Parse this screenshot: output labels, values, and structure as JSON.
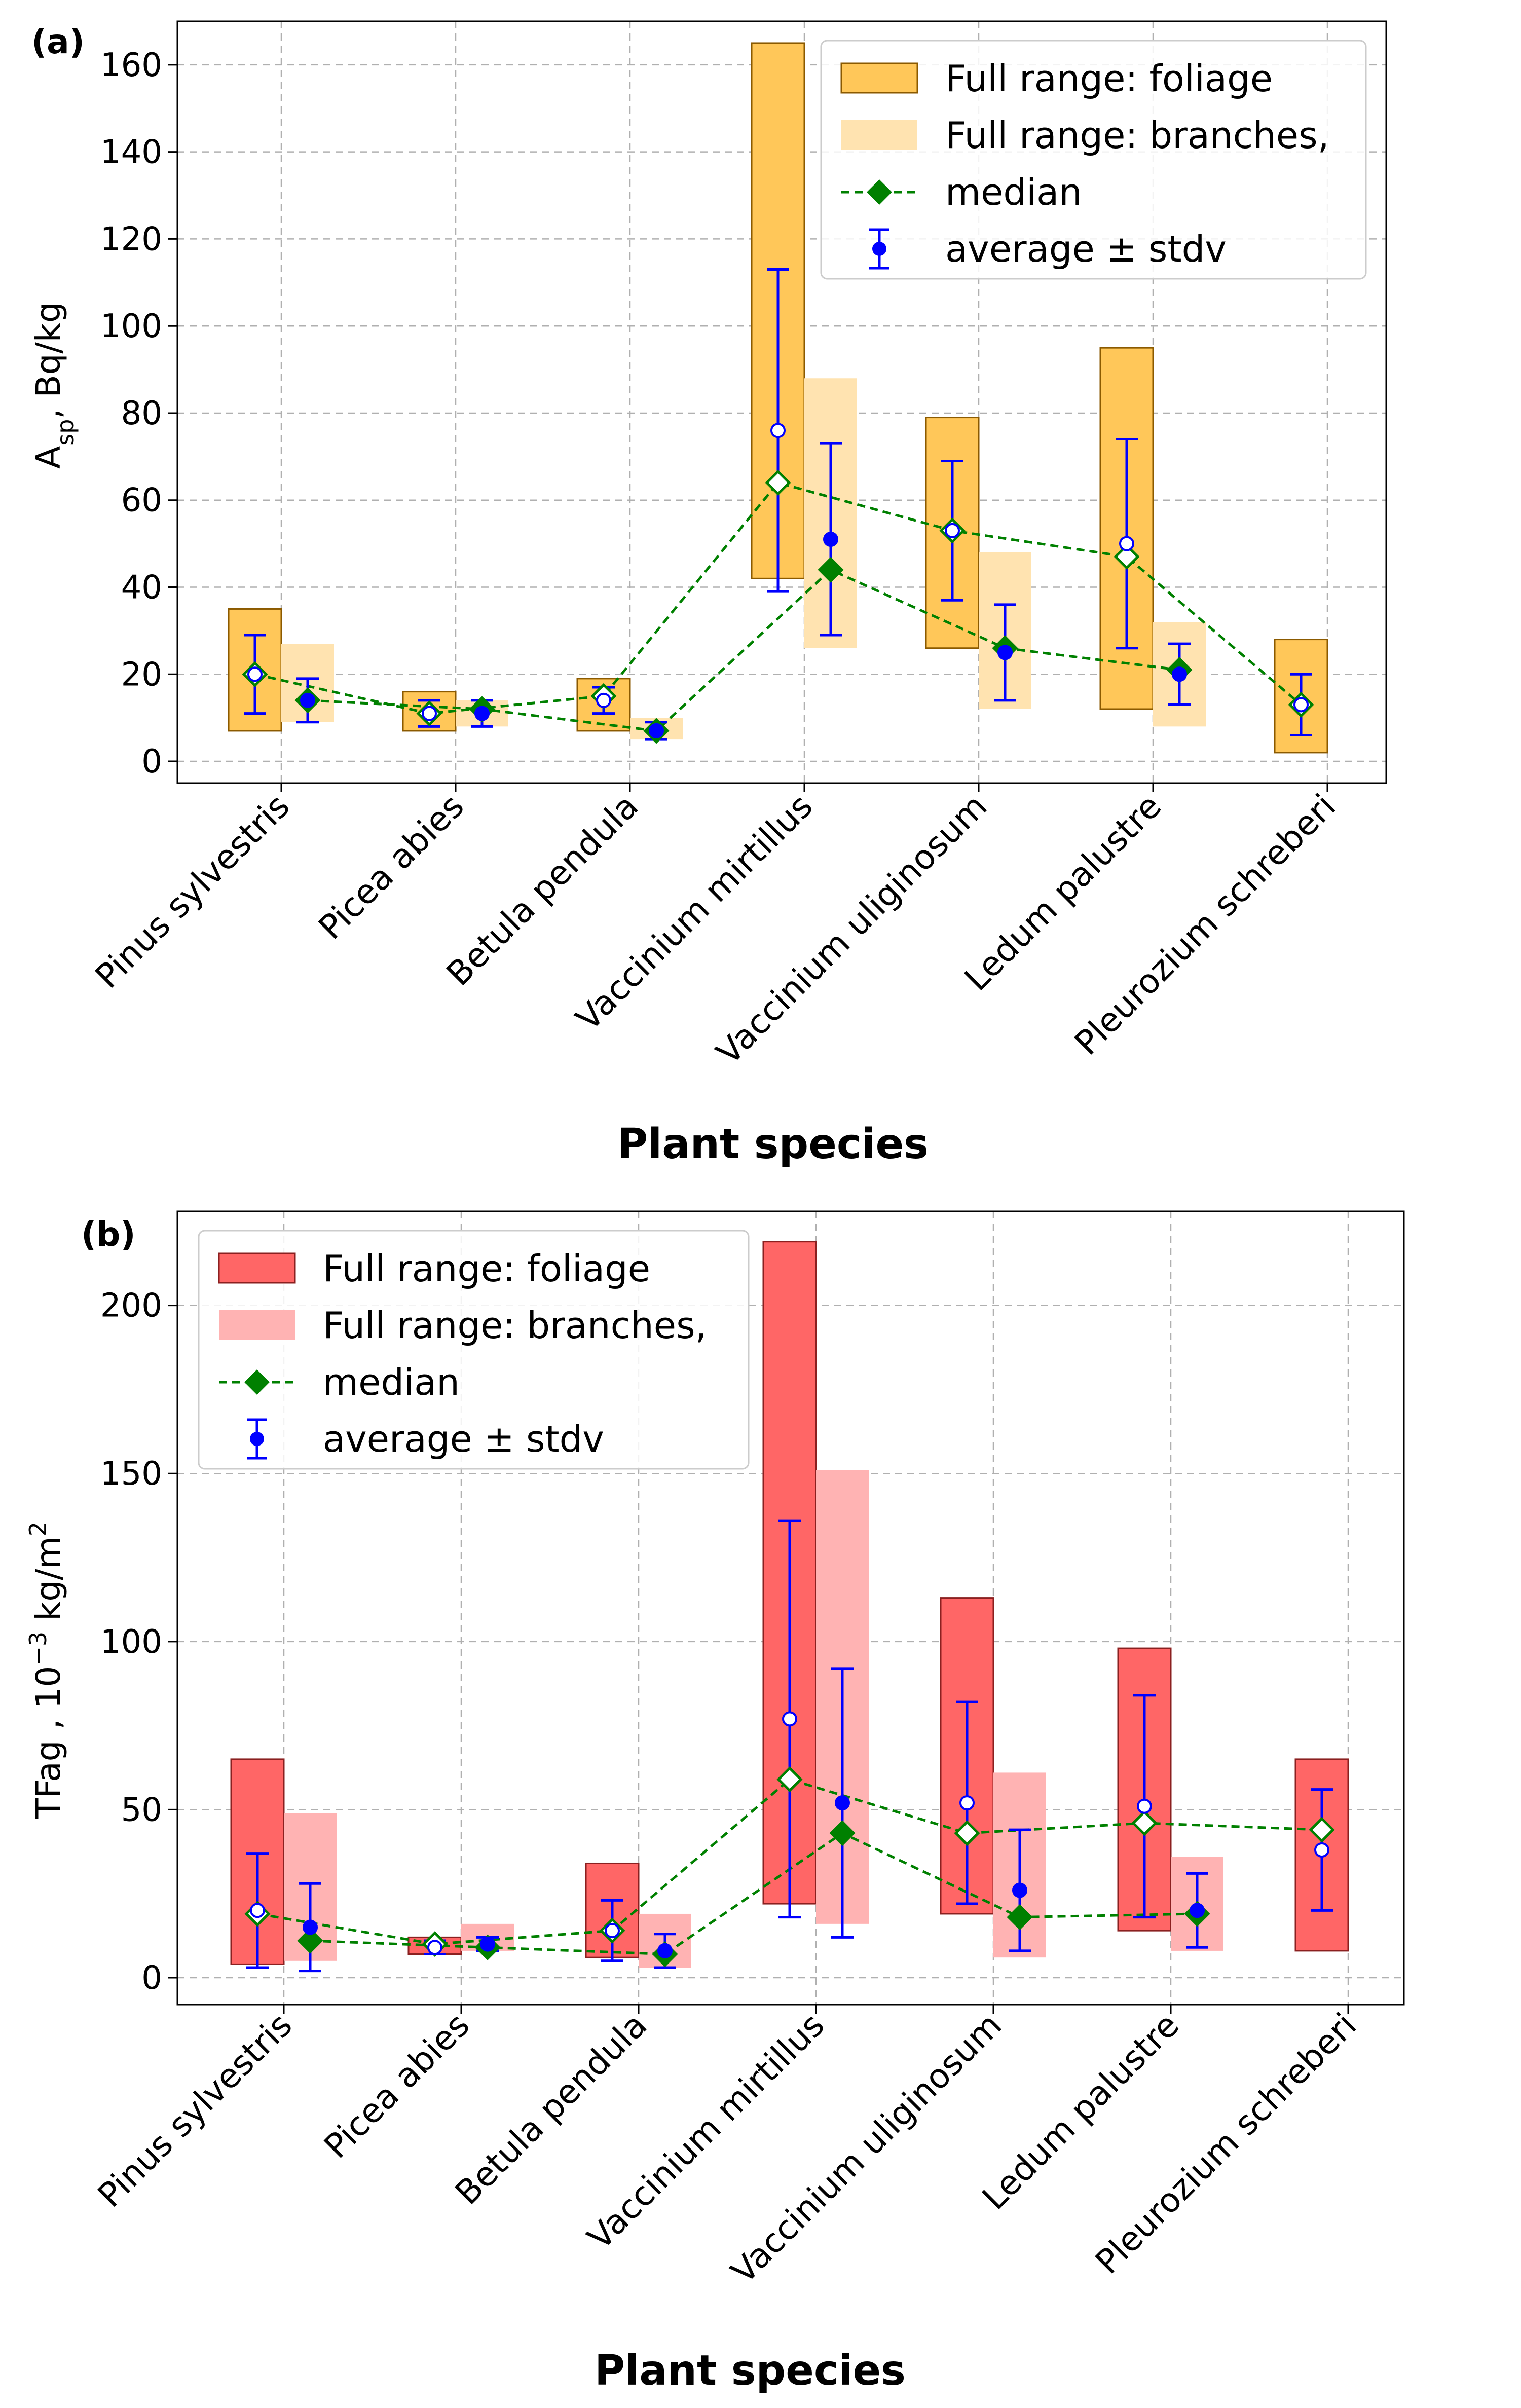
{
  "chart_data": [
    {
      "panel": "(a)",
      "type": "bar",
      "ylabel": "A_sp, Bq/kg",
      "xlabel": "Plant species",
      "ylim": [
        -5,
        170
      ],
      "yticks": [
        0,
        20,
        40,
        60,
        80,
        100,
        120,
        140,
        160
      ],
      "categories": [
        "Pinus sylvestris",
        "Picea abies",
        "Betula pendula",
        "Vaccinium mirtillus",
        "Vaccinium uliginosum",
        "Ledum palustre",
        "Pleurozium schreberi"
      ],
      "legend": [
        "Full range: foliage",
        "Full range: branches,",
        "median",
        "average ± stdv"
      ],
      "colors": {
        "foliage": "#FFC759",
        "branches": "#FFE3B0",
        "median": "#008000",
        "average": "#0000FF",
        "edge": "#8B5A00"
      },
      "foliage": {
        "range": [
          [
            7,
            35
          ],
          [
            7,
            16
          ],
          [
            7,
            19
          ],
          [
            42,
            165
          ],
          [
            26,
            79
          ],
          [
            12,
            95
          ],
          [
            2,
            28
          ]
        ],
        "median": [
          20,
          11,
          15,
          64,
          53,
          47,
          13
        ],
        "mean": [
          20,
          11,
          14,
          76,
          53,
          50,
          13
        ],
        "stdv": [
          9,
          3,
          3,
          37,
          16,
          24,
          7
        ]
      },
      "branches": {
        "range": [
          [
            9,
            27
          ],
          [
            8,
            14
          ],
          [
            5,
            10
          ],
          [
            26,
            88
          ],
          [
            12,
            48
          ],
          [
            8,
            32
          ],
          null
        ],
        "median": [
          14,
          12,
          7,
          44,
          26,
          21,
          null
        ],
        "mean": [
          14,
          11,
          7,
          51,
          25,
          20,
          null
        ],
        "stdv": [
          5,
          3,
          2,
          22,
          11,
          7,
          null
        ]
      }
    },
    {
      "panel": "(b)",
      "type": "bar",
      "ylabel": "TFag , 10^-3 kg/m^2",
      "xlabel": "Plant species",
      "ylim": [
        -8,
        228
      ],
      "yticks": [
        0,
        50,
        100,
        150,
        200
      ],
      "categories": [
        "Pinus sylvestris",
        "Picea abies",
        "Betula pendula",
        "Vaccinium mirtillus",
        "Vaccinium uliginosum",
        "Ledum palustre",
        "Pleurozium schreberi"
      ],
      "legend": [
        "Full range: foliage",
        "Full range: branches,",
        "median",
        "average ± stdv"
      ],
      "colors": {
        "foliage": "#FF6666",
        "branches": "#FFB3B3",
        "median": "#008000",
        "average": "#0000FF",
        "edge": "#8B2020"
      },
      "foliage": {
        "range": [
          [
            4,
            65
          ],
          [
            7,
            12
          ],
          [
            6,
            34
          ],
          [
            22,
            219
          ],
          [
            19,
            113
          ],
          [
            14,
            98
          ],
          [
            8,
            65
          ]
        ],
        "median": [
          19,
          10,
          14,
          59,
          43,
          46,
          44
        ],
        "mean": [
          20,
          9,
          14,
          77,
          52,
          51,
          38
        ],
        "stdv": [
          17,
          2,
          9,
          59,
          30,
          33,
          18
        ]
      },
      "branches": {
        "range": [
          [
            5,
            49
          ],
          [
            8,
            16
          ],
          [
            3,
            19
          ],
          [
            16,
            151
          ],
          [
            6,
            61
          ],
          [
            8,
            36
          ],
          null
        ],
        "median": [
          11,
          9,
          7,
          43,
          18,
          19,
          null
        ],
        "mean": [
          15,
          10,
          8,
          52,
          26,
          20,
          null
        ],
        "stdv": [
          13,
          2,
          5,
          40,
          18,
          11,
          null
        ]
      }
    }
  ]
}
